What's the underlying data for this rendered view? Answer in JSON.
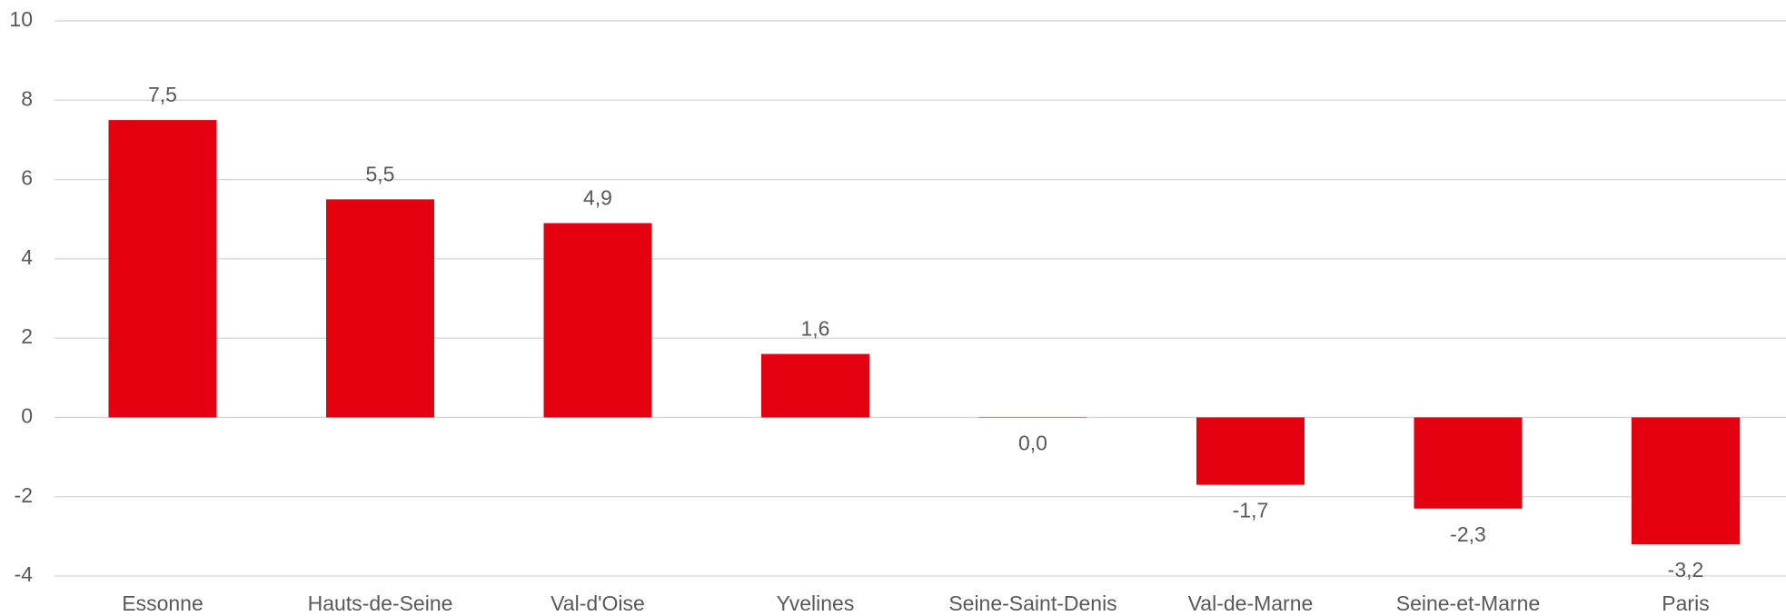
{
  "chart_data": {
    "type": "bar",
    "categories": [
      "Essonne",
      "Hauts-de-Seine",
      "Val-d'Oise",
      "Yvelines",
      "Seine-Saint-Denis",
      "Val-de-Marne",
      "Seine-et-Marne",
      "Paris"
    ],
    "values": [
      7.5,
      5.5,
      4.9,
      1.6,
      0.0,
      -1.7,
      -2.3,
      -3.2
    ],
    "value_labels": [
      "7,5",
      "5,5",
      "4,9",
      "1,6",
      "0,0",
      "-1,7",
      "-2,3",
      "-3,2"
    ],
    "color": "#e3000f",
    "ylim": [
      -4,
      10
    ],
    "yticks": [
      -4,
      -2,
      0,
      2,
      4,
      6,
      8,
      10
    ],
    "grid": true
  }
}
